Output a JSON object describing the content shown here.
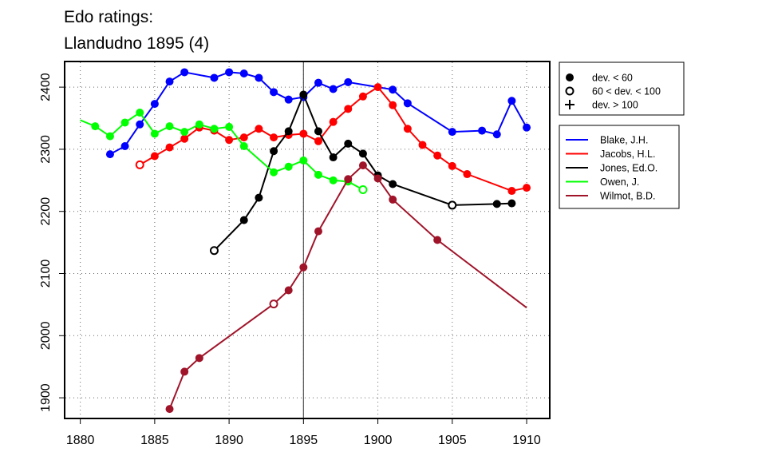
{
  "chart_data": {
    "type": "line",
    "title_lines": [
      "Edo ratings:",
      "Llandudno 1895 (4)"
    ],
    "xlabel": "",
    "ylabel": "",
    "xlim": [
      1879,
      1911.5
    ],
    "ylim": [
      1868,
      2440
    ],
    "x_ticks": [
      1880,
      1885,
      1890,
      1895,
      1900,
      1905,
      1910
    ],
    "y_ticks": [
      1900,
      2000,
      2100,
      2200,
      2300,
      2400
    ],
    "grid": "dotted",
    "reference_line_x": 1895,
    "marker_legend": [
      {
        "marker": "filled-circle",
        "label": "dev. < 60"
      },
      {
        "marker": "open-circle",
        "label": "60 < dev. < 100"
      },
      {
        "marker": "plus",
        "label": "dev. > 100"
      }
    ],
    "series": [
      {
        "name": "Blake, J.H.",
        "color": "#0000ff",
        "points": [
          {
            "x": 1882,
            "y": 2292,
            "m": "f"
          },
          {
            "x": 1883,
            "y": 2305,
            "m": "f"
          },
          {
            "x": 1884,
            "y": 2340,
            "m": "f"
          },
          {
            "x": 1885,
            "y": 2373,
            "m": "f"
          },
          {
            "x": 1886,
            "y": 2409,
            "m": "f"
          },
          {
            "x": 1887,
            "y": 2424,
            "m": "f"
          },
          {
            "x": 1889,
            "y": 2415,
            "m": "f"
          },
          {
            "x": 1890,
            "y": 2424,
            "m": "f"
          },
          {
            "x": 1891,
            "y": 2422,
            "m": "f"
          },
          {
            "x": 1892,
            "y": 2415,
            "m": "f"
          },
          {
            "x": 1893,
            "y": 2392,
            "m": "f"
          },
          {
            "x": 1894,
            "y": 2380,
            "m": "f"
          },
          {
            "x": 1895,
            "y": 2384,
            "m": "f"
          },
          {
            "x": 1896,
            "y": 2407,
            "m": "f"
          },
          {
            "x": 1897,
            "y": 2397,
            "m": "f"
          },
          {
            "x": 1898,
            "y": 2408,
            "m": "f"
          },
          {
            "x": 1900,
            "y": 2400,
            "m": "n"
          },
          {
            "x": 1901,
            "y": 2396,
            "m": "f"
          },
          {
            "x": 1902,
            "y": 2374,
            "m": "f"
          },
          {
            "x": 1905,
            "y": 2328,
            "m": "f"
          },
          {
            "x": 1907,
            "y": 2330,
            "m": "f"
          },
          {
            "x": 1908,
            "y": 2324,
            "m": "f"
          },
          {
            "x": 1909,
            "y": 2378,
            "m": "f"
          },
          {
            "x": 1910,
            "y": 2335,
            "m": "f"
          }
        ]
      },
      {
        "name": "Jacobs, H.L.",
        "color": "#ff0000",
        "points": [
          {
            "x": 1884,
            "y": 2275,
            "m": "o"
          },
          {
            "x": 1885,
            "y": 2289,
            "m": "f"
          },
          {
            "x": 1886,
            "y": 2303,
            "m": "f"
          },
          {
            "x": 1887,
            "y": 2317,
            "m": "f"
          },
          {
            "x": 1888,
            "y": 2335,
            "m": "f"
          },
          {
            "x": 1889,
            "y": 2330,
            "m": "f"
          },
          {
            "x": 1890,
            "y": 2315,
            "m": "f"
          },
          {
            "x": 1891,
            "y": 2319,
            "m": "f"
          },
          {
            "x": 1892,
            "y": 2333,
            "m": "f"
          },
          {
            "x": 1893,
            "y": 2319,
            "m": "f"
          },
          {
            "x": 1894,
            "y": 2323,
            "m": "f"
          },
          {
            "x": 1895,
            "y": 2325,
            "m": "f"
          },
          {
            "x": 1896,
            "y": 2313,
            "m": "f"
          },
          {
            "x": 1897,
            "y": 2344,
            "m": "f"
          },
          {
            "x": 1898,
            "y": 2365,
            "m": "f"
          },
          {
            "x": 1899,
            "y": 2385,
            "m": "f"
          },
          {
            "x": 1900,
            "y": 2400,
            "m": "f"
          },
          {
            "x": 1901,
            "y": 2371,
            "m": "f"
          },
          {
            "x": 1902,
            "y": 2333,
            "m": "f"
          },
          {
            "x": 1903,
            "y": 2307,
            "m": "f"
          },
          {
            "x": 1904,
            "y": 2290,
            "m": "f"
          },
          {
            "x": 1905,
            "y": 2273,
            "m": "f"
          },
          {
            "x": 1906,
            "y": 2260,
            "m": "f"
          },
          {
            "x": 1909,
            "y": 2233,
            "m": "f"
          },
          {
            "x": 1910,
            "y": 2238,
            "m": "f"
          }
        ]
      },
      {
        "name": "Jones, Ed.O.",
        "color": "#000000",
        "points": [
          {
            "x": 1889,
            "y": 2137,
            "m": "o"
          },
          {
            "x": 1891,
            "y": 2186,
            "m": "f"
          },
          {
            "x": 1892,
            "y": 2222,
            "m": "f"
          },
          {
            "x": 1893,
            "y": 2297,
            "m": "f"
          },
          {
            "x": 1894,
            "y": 2329,
            "m": "f"
          },
          {
            "x": 1895,
            "y": 2388,
            "m": "f"
          },
          {
            "x": 1896,
            "y": 2329,
            "m": "f"
          },
          {
            "x": 1897,
            "y": 2287,
            "m": "f"
          },
          {
            "x": 1898,
            "y": 2309,
            "m": "f"
          },
          {
            "x": 1899,
            "y": 2293,
            "m": "f"
          },
          {
            "x": 1900,
            "y": 2258,
            "m": "f"
          },
          {
            "x": 1901,
            "y": 2244,
            "m": "f"
          },
          {
            "x": 1905,
            "y": 2210,
            "m": "o"
          },
          {
            "x": 1908,
            "y": 2212,
            "m": "f"
          },
          {
            "x": 1909,
            "y": 2213,
            "m": "f"
          }
        ]
      },
      {
        "name": "Owen, J.",
        "color": "#00ff00",
        "points": [
          {
            "x": 1880,
            "y": 2347,
            "m": "n"
          },
          {
            "x": 1881,
            "y": 2337,
            "m": "f"
          },
          {
            "x": 1882,
            "y": 2321,
            "m": "f"
          },
          {
            "x": 1883,
            "y": 2343,
            "m": "f"
          },
          {
            "x": 1884,
            "y": 2359,
            "m": "f"
          },
          {
            "x": 1885,
            "y": 2325,
            "m": "f"
          },
          {
            "x": 1886,
            "y": 2337,
            "m": "f"
          },
          {
            "x": 1887,
            "y": 2328,
            "m": "f"
          },
          {
            "x": 1888,
            "y": 2340,
            "m": "f"
          },
          {
            "x": 1889,
            "y": 2333,
            "m": "f"
          },
          {
            "x": 1890,
            "y": 2336,
            "m": "f"
          },
          {
            "x": 1891,
            "y": 2305,
            "m": "f"
          },
          {
            "x": 1893,
            "y": 2263,
            "m": "f"
          },
          {
            "x": 1894,
            "y": 2272,
            "m": "f"
          },
          {
            "x": 1895,
            "y": 2282,
            "m": "f"
          },
          {
            "x": 1896,
            "y": 2259,
            "m": "f"
          },
          {
            "x": 1897,
            "y": 2250,
            "m": "f"
          },
          {
            "x": 1898,
            "y": 2248,
            "m": "f"
          },
          {
            "x": 1899,
            "y": 2235,
            "m": "o"
          }
        ]
      },
      {
        "name": "Wilmot, B.D.",
        "color": "#a0142a",
        "points": [
          {
            "x": 1886,
            "y": 1882,
            "m": "f"
          },
          {
            "x": 1887,
            "y": 1942,
            "m": "f"
          },
          {
            "x": 1888,
            "y": 1964,
            "m": "f"
          },
          {
            "x": 1893,
            "y": 2051,
            "m": "o"
          },
          {
            "x": 1894,
            "y": 2073,
            "m": "f"
          },
          {
            "x": 1895,
            "y": 2110,
            "m": "f"
          },
          {
            "x": 1896,
            "y": 2168,
            "m": "f"
          },
          {
            "x": 1898,
            "y": 2252,
            "m": "f"
          },
          {
            "x": 1899,
            "y": 2274,
            "m": "f"
          },
          {
            "x": 1900,
            "y": 2253,
            "m": "f"
          },
          {
            "x": 1901,
            "y": 2219,
            "m": "f"
          },
          {
            "x": 1904,
            "y": 2154,
            "m": "f"
          },
          {
            "x": 1910,
            "y": 2045,
            "m": "n"
          }
        ]
      }
    ]
  }
}
